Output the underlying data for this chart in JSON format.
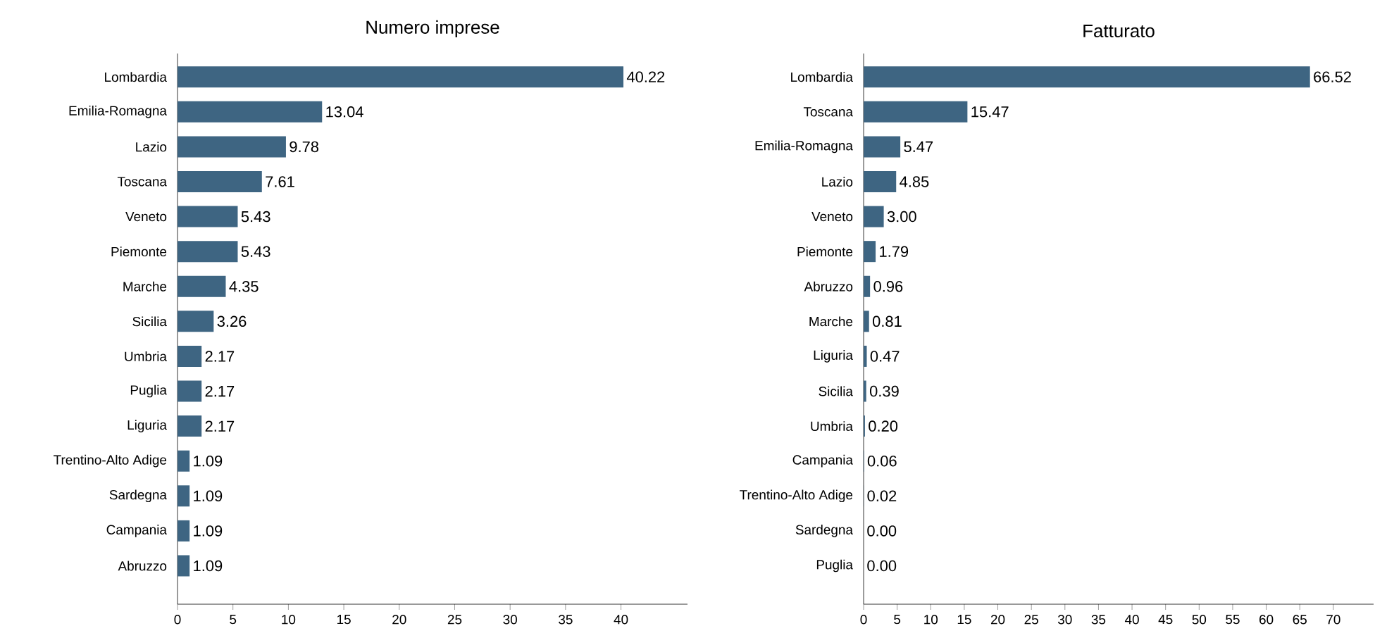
{
  "chart_data": [
    {
      "type": "bar",
      "orientation": "horizontal",
      "title": "Numero imprese",
      "categories": [
        "Lombardia",
        "Emilia-Romagna",
        "Lazio",
        "Toscana",
        "Veneto",
        "Piemonte",
        "Marche",
        "Sicilia",
        "Umbria",
        "Puglia",
        "Liguria",
        "Trentino-Alto Adige",
        "Sardegna",
        "Campania",
        "Abruzzo"
      ],
      "values": [
        40.22,
        13.04,
        9.78,
        7.61,
        5.43,
        5.43,
        4.35,
        3.26,
        2.17,
        2.17,
        2.17,
        1.09,
        1.09,
        1.09,
        1.09
      ],
      "value_labels": [
        "40.22",
        "13.04",
        "9.78",
        "7.61",
        "5.43",
        "5.43",
        "4.35",
        "3.26",
        "2.17",
        "2.17",
        "2.17",
        "1.09",
        "1.09",
        "1.09",
        "1.09"
      ],
      "color": "#3e6582",
      "xlim": [
        0,
        46
      ],
      "xticks": [
        0,
        5,
        10,
        15,
        20,
        25,
        30,
        35,
        40
      ]
    },
    {
      "type": "bar",
      "orientation": "horizontal",
      "title": "Fatturato",
      "categories": [
        "Lombardia",
        "Toscana",
        "Emilia-Romagna",
        "Lazio",
        "Veneto",
        "Piemonte",
        "Abruzzo",
        "Marche",
        "Liguria",
        "Sicilia",
        "Umbria",
        "Campania",
        "Trentino-Alto Adige",
        "Sardegna",
        "Puglia"
      ],
      "values": [
        66.52,
        15.47,
        5.47,
        4.85,
        3.0,
        1.79,
        0.96,
        0.81,
        0.47,
        0.39,
        0.2,
        0.06,
        0.02,
        0.0,
        0.0
      ],
      "value_labels": [
        "66.52",
        "15.47",
        "5.47",
        "4.85",
        "3.00",
        "1.79",
        "0.96",
        "0.81",
        "0.47",
        "0.39",
        "0.20",
        "0.06",
        "0.02",
        "0.00",
        "0.00"
      ],
      "color": "#3e6582",
      "xlim": [
        0,
        76
      ],
      "xticks": [
        0,
        5,
        10,
        15,
        20,
        25,
        30,
        35,
        40,
        45,
        50,
        55,
        60,
        65,
        70
      ]
    }
  ]
}
